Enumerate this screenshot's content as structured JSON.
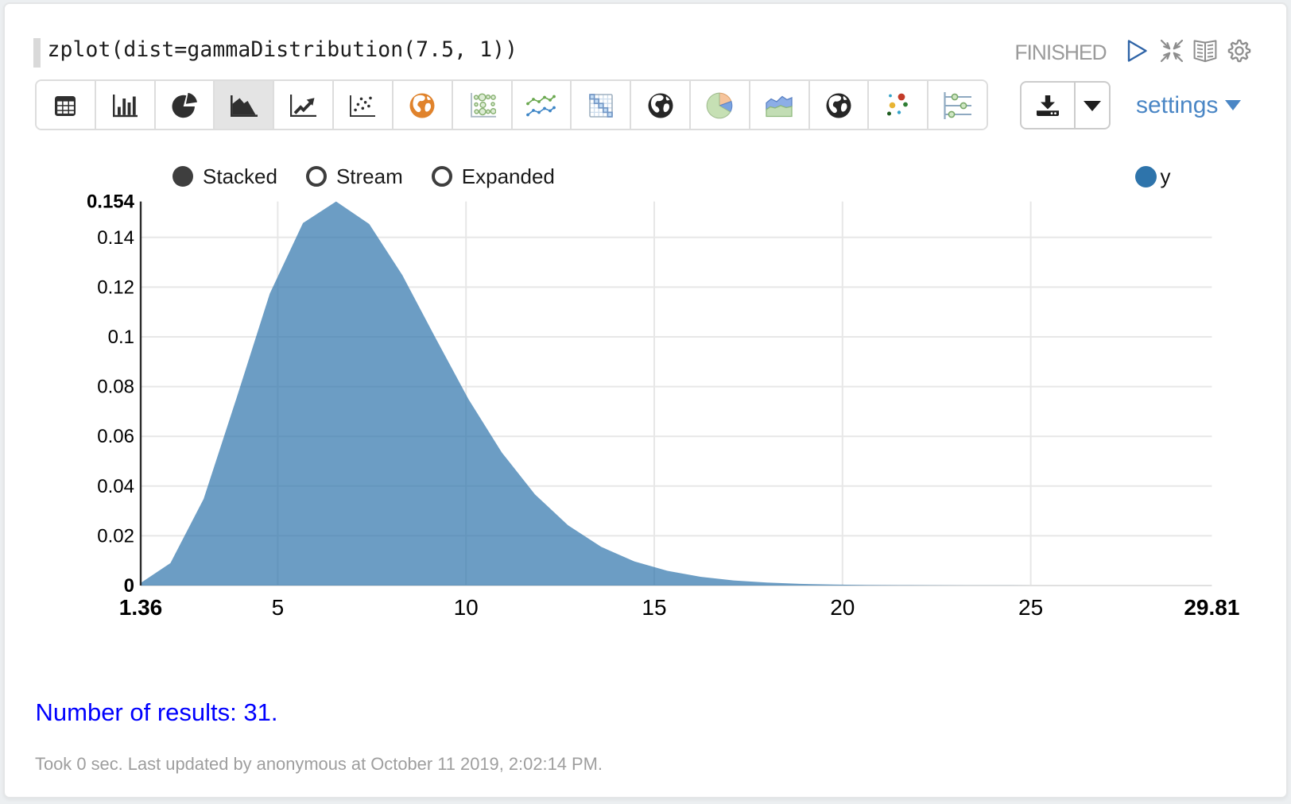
{
  "paragraph": {
    "code": "zplot(dist=gammaDistribution(7.5, 1))",
    "status": "FINISHED",
    "header_icons": [
      "run-icon",
      "shrink-paragraph-icon",
      "show-editor-icon",
      "paragraph-settings-icon"
    ]
  },
  "toolbar": {
    "chart_types": [
      {
        "id": "table",
        "icon": "table-icon",
        "selected": false
      },
      {
        "id": "bar-chart",
        "icon": "bar-chart-icon",
        "selected": false
      },
      {
        "id": "pie-chart",
        "icon": "pie-chart-icon",
        "selected": false
      },
      {
        "id": "area-chart",
        "icon": "area-chart-icon",
        "selected": true
      },
      {
        "id": "line-chart",
        "icon": "line-chart-icon",
        "selected": false
      },
      {
        "id": "scatter-chart",
        "icon": "scatter-chart-icon",
        "selected": false
      },
      {
        "id": "map-orange",
        "icon": "globe-orange-icon",
        "selected": false
      },
      {
        "id": "bubble-chart",
        "icon": "bubble-grid-icon",
        "selected": false
      },
      {
        "id": "multi-line-chart",
        "icon": "multi-line-icon",
        "selected": false
      },
      {
        "id": "heatmap-chart",
        "icon": "heatmap-grid-icon",
        "selected": false
      },
      {
        "id": "map-dark-1",
        "icon": "globe-dark-icon",
        "selected": false
      },
      {
        "id": "pie-color",
        "icon": "pie-colored-icon",
        "selected": false
      },
      {
        "id": "area-color",
        "icon": "area-colored-icon",
        "selected": false
      },
      {
        "id": "map-dark-2",
        "icon": "globe-dark2-icon",
        "selected": false
      },
      {
        "id": "scatter-color",
        "icon": "scatter-colored-icon",
        "selected": false
      },
      {
        "id": "range-chart",
        "icon": "range-sliders-icon",
        "selected": false
      }
    ],
    "download_icon": "download-icon",
    "download_caret_icon": "caret-down-icon",
    "settings_label": "settings"
  },
  "chart_controls": {
    "options": [
      {
        "label": "Stacked",
        "selected": true
      },
      {
        "label": "Stream",
        "selected": false
      },
      {
        "label": "Expanded",
        "selected": false
      }
    ]
  },
  "legend": {
    "series_label": "y",
    "color": "#2e74ab"
  },
  "chart_data": {
    "type": "area",
    "title": "",
    "xlabel": "",
    "ylabel": "",
    "mode": "Stacked",
    "grid": true,
    "legend_position": "top-right",
    "x_domain": [
      1.36,
      29.81
    ],
    "y_domain": [
      0,
      0.154457
    ],
    "x_ticks": [
      5,
      10,
      15,
      20,
      25
    ],
    "y_ticks": [
      0.02,
      0.04,
      0.06,
      0.08,
      0.1,
      0.12,
      0.14
    ],
    "x_tick_labels": [
      "5",
      "10",
      "15",
      "20",
      "25"
    ],
    "y_tick_labels": [
      "0.02",
      "0.04",
      "0.06",
      "0.08",
      "0.1",
      "0.12",
      "0.14"
    ],
    "x_edge_labels": [
      "1.36",
      "29.81"
    ],
    "y_edge_labels": [
      "0",
      "0.154"
    ],
    "series": [
      {
        "name": "y",
        "color": "#2e74ab",
        "fill_opacity": 0.7,
        "points": [
          [
            1.36,
            0.001012
          ],
          [
            2.15,
            0.009015
          ],
          [
            3.03,
            0.03478
          ],
          [
            3.91,
            0.07567
          ],
          [
            4.79,
            0.11743
          ],
          [
            5.67,
            0.145783
          ],
          [
            6.55,
            0.154457
          ],
          [
            7.43,
            0.145374
          ],
          [
            8.31,
            0.124821
          ],
          [
            9.19,
            0.099598
          ],
          [
            10.07,
            0.074854
          ],
          [
            10.95,
            0.053522
          ],
          [
            11.83,
            0.036691
          ],
          [
            12.71,
            0.024262
          ],
          [
            13.59,
            0.01555
          ],
          [
            14.47,
            0.009698
          ],
          [
            15.35,
            0.005904
          ],
          [
            16.23,
            0.003518
          ],
          [
            17.11,
            0.002057
          ],
          [
            17.99,
            0.001182
          ],
          [
            18.87,
            0.000669
          ],
          [
            19.75,
            0.000373
          ],
          [
            20.63,
            0.000205
          ],
          [
            21.51,
            0.000112
          ],
          [
            22.39,
            6e-05
          ],
          [
            23.27,
            3.2e-05
          ],
          [
            24.15,
            1.7e-05
          ],
          [
            25.03,
            9e-06
          ],
          [
            25.91,
            5e-06
          ],
          [
            26.79,
            2e-06
          ],
          [
            29.81,
            0.0
          ]
        ]
      }
    ]
  },
  "result": {
    "text": "Number of results: 31."
  },
  "footer": {
    "text": "Took 0 sec. Last updated by anonymous at October 11 2019, 2:02:14 PM."
  }
}
